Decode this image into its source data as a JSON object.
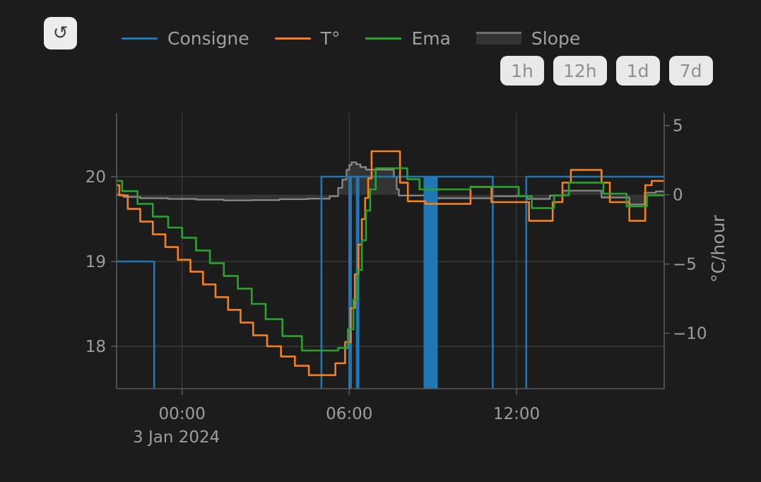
{
  "toolbar": {
    "refresh_icon": "↺"
  },
  "legend": {
    "items": [
      {
        "label": "Consigne",
        "color": "#1f77b4",
        "type": "line"
      },
      {
        "label": "T°",
        "color": "#f5801e",
        "type": "line"
      },
      {
        "label": "Ema",
        "color": "#28a32c",
        "type": "line"
      },
      {
        "label": "Slope",
        "color": "#8b8b8b",
        "type": "area"
      }
    ]
  },
  "range_buttons": [
    {
      "label": "1h"
    },
    {
      "label": "12h"
    },
    {
      "label": "1d"
    },
    {
      "label": "7d"
    }
  ],
  "colors": {
    "background": "#1c1c1d",
    "grid": "#38383a",
    "axis_line": "#58585a",
    "tick_text": "#9d9d9d",
    "slope_fill_opacity": 0.22
  },
  "chart_data": {
    "type": "line",
    "title": "",
    "x_unit": "hours from 2024-01-03 00:00",
    "x_range": [
      -2.35,
      17.3
    ],
    "x_ticks": [
      {
        "t": 0,
        "label": "00:00"
      },
      {
        "t": 6,
        "label": "06:00"
      },
      {
        "t": 12,
        "label": "12:00"
      }
    ],
    "date_label": "3 Jan 2024",
    "y_left": {
      "range": [
        17.5,
        20.75
      ],
      "ticks": [
        {
          "v": 20,
          "label": "20"
        },
        {
          "v": 19,
          "label": "19"
        },
        {
          "v": 18,
          "label": "18"
        }
      ]
    },
    "y_right": {
      "title": "°C/hour",
      "range": [
        -14,
        5.9
      ],
      "ticks": [
        {
          "v": 5,
          "label": "5"
        },
        {
          "v": 0,
          "label": "0"
        },
        {
          "v": -5,
          "label": "−5"
        },
        {
          "v": -10,
          "label": "−10"
        }
      ]
    },
    "grid": true,
    "legend_position": "top",
    "series": [
      {
        "name": "Slope",
        "color": "#8b8b8b",
        "axis": "right",
        "step": "hv",
        "fill": "tozero",
        "width": 2.2,
        "points": [
          [
            -2.35,
            0.0
          ],
          [
            -2.1,
            -0.15
          ],
          [
            -1.5,
            -0.25
          ],
          [
            -0.5,
            -0.3
          ],
          [
            0.5,
            -0.35
          ],
          [
            1.5,
            -0.4
          ],
          [
            2.5,
            -0.38
          ],
          [
            3.5,
            -0.32
          ],
          [
            4.5,
            -0.28
          ],
          [
            5.3,
            -0.1
          ],
          [
            5.6,
            0.5
          ],
          [
            5.75,
            1.1
          ],
          [
            5.9,
            1.8
          ],
          [
            6.0,
            2.15
          ],
          [
            6.08,
            2.35
          ],
          [
            6.25,
            2.2
          ],
          [
            6.4,
            2.0
          ],
          [
            6.6,
            1.82
          ],
          [
            7.6,
            1.3
          ],
          [
            7.7,
            0.4
          ],
          [
            7.78,
            -0.05
          ],
          [
            8.75,
            -0.25
          ],
          [
            11.15,
            -0.1
          ],
          [
            12.4,
            -0.3
          ],
          [
            13.2,
            -0.05
          ],
          [
            13.65,
            0.3
          ],
          [
            15.05,
            -0.2
          ],
          [
            16.05,
            -0.7
          ],
          [
            16.6,
            0.15
          ],
          [
            17.0,
            0.25
          ]
        ]
      },
      {
        "name": "Consigne",
        "color": "#1f77b4",
        "axis": "left",
        "step": "hv",
        "fill": "none",
        "width": 2.6,
        "points": [
          [
            -2.35,
            19
          ],
          [
            -1.0,
            17.2
          ],
          [
            5.0,
            20
          ],
          [
            6.0,
            17.2
          ],
          [
            6.06,
            20
          ],
          [
            6.27,
            17.2
          ],
          [
            6.33,
            20
          ],
          [
            8.7,
            17.2
          ],
          [
            8.74,
            20
          ],
          [
            8.8,
            17.2
          ],
          [
            8.84,
            20
          ],
          [
            8.9,
            17.2
          ],
          [
            8.94,
            20
          ],
          [
            9.0,
            17.2
          ],
          [
            9.04,
            20
          ],
          [
            9.1,
            17.2
          ],
          [
            9.14,
            20
          ],
          [
            11.15,
            17.2
          ],
          [
            12.35,
            20
          ]
        ]
      },
      {
        "name": "T°",
        "color": "#f5801e",
        "axis": "left",
        "step": "hv",
        "fill": "none",
        "width": 2.6,
        "points": [
          [
            -2.35,
            19.9
          ],
          [
            -2.25,
            19.78
          ],
          [
            -1.95,
            19.62
          ],
          [
            -1.5,
            19.47
          ],
          [
            -1.05,
            19.32
          ],
          [
            -0.6,
            19.17
          ],
          [
            -0.15,
            19.02
          ],
          [
            0.3,
            18.88
          ],
          [
            0.75,
            18.73
          ],
          [
            1.2,
            18.58
          ],
          [
            1.65,
            18.43
          ],
          [
            2.1,
            18.28
          ],
          [
            2.55,
            18.13
          ],
          [
            3.05,
            18.0
          ],
          [
            3.55,
            17.88
          ],
          [
            4.05,
            17.77
          ],
          [
            4.55,
            17.66
          ],
          [
            5.5,
            17.8
          ],
          [
            5.85,
            18.05
          ],
          [
            6.05,
            18.45
          ],
          [
            6.2,
            18.85
          ],
          [
            6.33,
            19.2
          ],
          [
            6.45,
            19.5
          ],
          [
            6.57,
            19.75
          ],
          [
            6.68,
            19.98
          ],
          [
            6.8,
            20.3
          ],
          [
            7.82,
            19.93
          ],
          [
            8.1,
            19.71
          ],
          [
            8.73,
            19.68
          ],
          [
            10.35,
            19.88
          ],
          [
            11.1,
            19.7
          ],
          [
            12.45,
            19.48
          ],
          [
            13.3,
            19.7
          ],
          [
            13.65,
            19.93
          ],
          [
            13.95,
            20.08
          ],
          [
            15.05,
            19.93
          ],
          [
            15.35,
            19.7
          ],
          [
            16.05,
            19.48
          ],
          [
            16.62,
            19.9
          ],
          [
            16.85,
            19.95
          ]
        ]
      },
      {
        "name": "Ema",
        "color": "#28a32c",
        "axis": "left",
        "step": "hv",
        "fill": "none",
        "width": 2.6,
        "points": [
          [
            -2.35,
            19.95
          ],
          [
            -2.15,
            19.83
          ],
          [
            -1.6,
            19.68
          ],
          [
            -1.05,
            19.53
          ],
          [
            -0.5,
            19.4
          ],
          [
            0.0,
            19.28
          ],
          [
            0.5,
            19.13
          ],
          [
            1.0,
            18.98
          ],
          [
            1.5,
            18.83
          ],
          [
            2.0,
            18.68
          ],
          [
            2.5,
            18.5
          ],
          [
            3.0,
            18.32
          ],
          [
            3.6,
            18.12
          ],
          [
            4.3,
            17.95
          ],
          [
            5.6,
            17.98
          ],
          [
            5.95,
            18.2
          ],
          [
            6.15,
            18.55
          ],
          [
            6.3,
            18.9
          ],
          [
            6.45,
            19.25
          ],
          [
            6.6,
            19.6
          ],
          [
            6.75,
            19.85
          ],
          [
            6.95,
            20.1
          ],
          [
            8.08,
            19.97
          ],
          [
            8.52,
            19.85
          ],
          [
            10.35,
            19.88
          ],
          [
            12.08,
            19.77
          ],
          [
            12.55,
            19.63
          ],
          [
            13.35,
            19.78
          ],
          [
            13.88,
            19.93
          ],
          [
            15.12,
            19.8
          ],
          [
            15.95,
            19.65
          ],
          [
            16.68,
            19.78
          ]
        ]
      }
    ]
  }
}
